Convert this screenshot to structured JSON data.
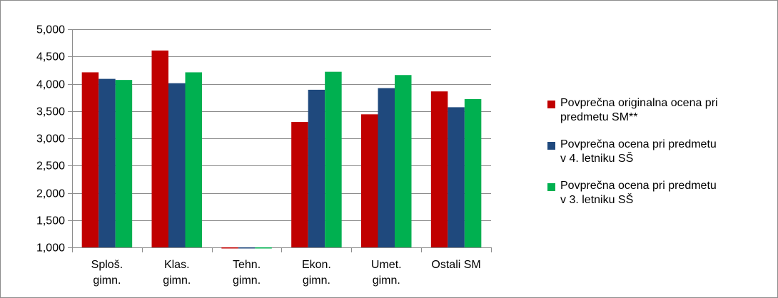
{
  "chart_data": {
    "type": "bar",
    "categories": [
      [
        "Sploš.",
        "gimn."
      ],
      [
        "Klas.",
        "gimn."
      ],
      [
        "Tehn.",
        "gimn."
      ],
      [
        "Ekon.",
        "gimn."
      ],
      [
        "Umet.",
        "gimn."
      ],
      [
        "Ostali SM"
      ]
    ],
    "series": [
      {
        "name": "Povprečna originalna ocena pri predmetu SM**",
        "name_lines": [
          "Povprečna originalna ocena pri",
          "predmetu SM**"
        ],
        "color": "#c00000",
        "values": [
          4.21,
          4.61,
          0.98,
          3.3,
          3.44,
          3.86
        ]
      },
      {
        "name": "Povprečna ocena pri predmetu v 4. letniku SŠ",
        "name_lines": [
          "Povprečna ocena pri predmetu",
          "v 4. letniku SŠ"
        ],
        "color": "#1f497d",
        "values": [
          4.09,
          4.01,
          0.98,
          3.89,
          3.92,
          3.57
        ]
      },
      {
        "name": "Povprečna ocena pri predmetu v 3. letniku SŠ",
        "name_lines": [
          "Povprečna ocena pri predmetu",
          "v 3. letniku SŠ"
        ],
        "color": "#00b050",
        "values": [
          4.07,
          4.21,
          0.98,
          4.22,
          4.16,
          3.72
        ]
      }
    ],
    "ylim": [
      1.0,
      5.0
    ],
    "yticks": [
      1.0,
      1.5,
      2.0,
      2.5,
      3.0,
      3.5,
      4.0,
      4.5,
      5.0
    ],
    "ytick_labels": [
      "1,000",
      "1,500",
      "2,000",
      "2,500",
      "3,000",
      "3,500",
      "4,000",
      "4,500",
      "5,000"
    ],
    "grid": true,
    "legend_position": "right",
    "title": "",
    "xlabel": "",
    "ylabel": ""
  }
}
